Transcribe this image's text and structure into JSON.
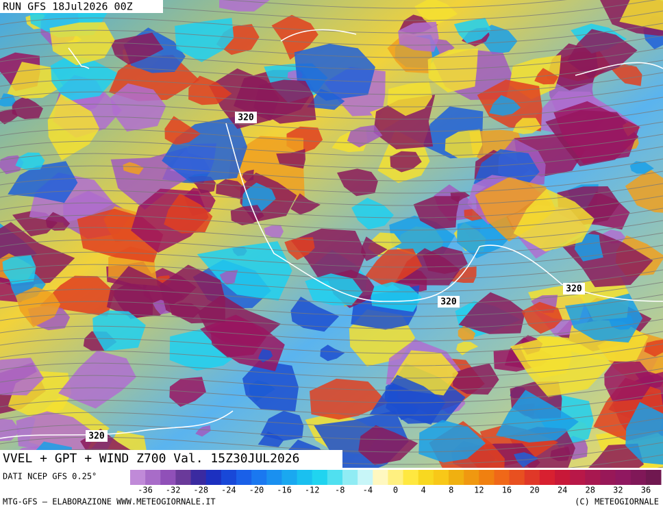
{
  "header": {
    "run": "RUN GFS 18Jul2026 00Z"
  },
  "map": {
    "title": "VVEL + GPT + WIND Z700 Val. 15Z30JUL2026",
    "contour_labels": [
      "320",
      "320",
      "320",
      "320"
    ]
  },
  "colorbar": {
    "source": "DATI NCEP GFS 0.25°",
    "labels": [
      -36,
      -32,
      -28,
      -24,
      -20,
      -16,
      -12,
      -8,
      -4,
      0,
      4,
      8,
      12,
      16,
      20,
      24,
      28,
      32,
      36
    ]
  },
  "footer": {
    "left": "MTG-GFS — ELABORAZIONE WWW.METEOGIORNALE.IT",
    "right": "(C) METEOGIORNALE"
  }
}
